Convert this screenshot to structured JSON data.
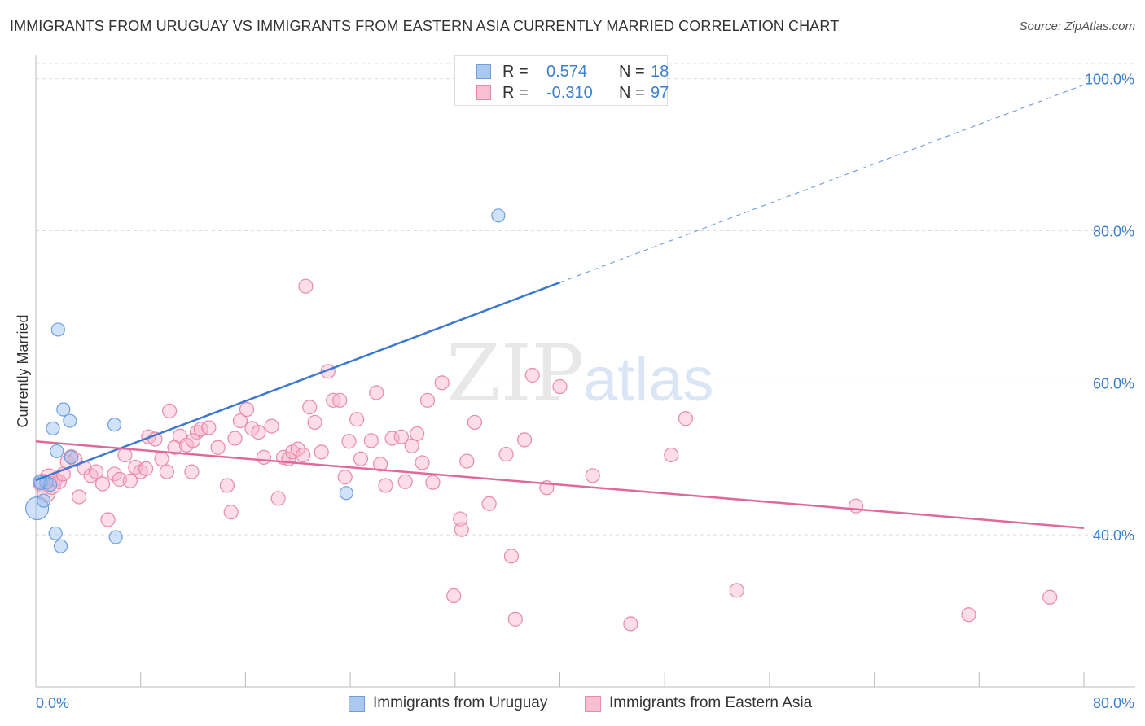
{
  "title": "IMMIGRANTS FROM URUGUAY VS IMMIGRANTS FROM EASTERN ASIA CURRENTLY MARRIED CORRELATION CHART",
  "source": "Source: ZipAtlas.com",
  "watermark": {
    "zip": "ZIP",
    "atlas": "atlas"
  },
  "legend_top": [
    {
      "r_label": "R =",
      "r_value": "0.574",
      "n_label": "N =",
      "n_value": "18",
      "color": "#aac8f0",
      "border": "#6e9fdc"
    },
    {
      "r_label": "R =",
      "r_value": "-0.310",
      "n_label": "N =",
      "n_value": "97",
      "color": "#f8bfd2",
      "border": "#e78aab"
    }
  ],
  "legend_bottom": [
    {
      "label": "Immigrants from Uruguay",
      "color": "#aac8f0",
      "border": "#6e9fdc"
    },
    {
      "label": "Immigrants from Eastern Asia",
      "color": "#f8bfd2",
      "border": "#e78aab"
    }
  ],
  "chart_data": {
    "type": "scatter",
    "ylabel": "Currently Married",
    "xlim": [
      0,
      80
    ],
    "ylim": [
      20,
      102
    ],
    "x_tick_labels": [
      "0.0%",
      "80.0%"
    ],
    "y_ticks": [
      {
        "value": 40,
        "label": "40.0%"
      },
      {
        "value": 60,
        "label": "60.0%"
      },
      {
        "value": 80,
        "label": "80.0%"
      },
      {
        "value": 100,
        "label": "100.0%"
      }
    ],
    "colors": {
      "blue": "#3b78d2",
      "pink": "#e0699a",
      "blue_fill": "rgba(150,190,240,0.45)",
      "pink_fill": "rgba(248,180,205,0.45)",
      "blue_stroke": "#6e9fdc",
      "pink_stroke": "#e78aab"
    },
    "series": [
      {
        "name": "Immigrants from Uruguay",
        "points": [
          [
            0.1,
            43.5
          ],
          [
            0.4,
            46.8
          ],
          [
            0.6,
            44.5
          ],
          [
            0.8,
            46.9
          ],
          [
            1.1,
            46.6
          ],
          [
            1.3,
            54.0
          ],
          [
            1.5,
            40.2
          ],
          [
            1.6,
            51.0
          ],
          [
            1.7,
            67.0
          ],
          [
            1.9,
            38.5
          ],
          [
            2.1,
            56.5
          ],
          [
            2.6,
            55.0
          ],
          [
            2.7,
            50.2
          ],
          [
            6.0,
            54.5
          ],
          [
            6.1,
            39.7
          ],
          [
            23.7,
            45.5
          ],
          [
            35.3,
            82.0
          ],
          [
            0.3,
            47.0
          ]
        ],
        "trend": {
          "x0": 0,
          "y0": 47.2,
          "x1": 40,
          "y1": 73.2,
          "x_ext": 80,
          "y_ext": 99.2
        }
      },
      {
        "name": "Immigrants from Eastern Asia",
        "points": [
          [
            0.5,
            46.8
          ],
          [
            0.8,
            45.5
          ],
          [
            1.0,
            47.5
          ],
          [
            1.2,
            46.5
          ],
          [
            1.5,
            47.3
          ],
          [
            1.8,
            47.0
          ],
          [
            2.1,
            48.0
          ],
          [
            2.4,
            49.6
          ],
          [
            2.7,
            50.3
          ],
          [
            3.0,
            49.9
          ],
          [
            3.3,
            45.0
          ],
          [
            3.7,
            48.8
          ],
          [
            4.2,
            47.8
          ],
          [
            4.6,
            48.3
          ],
          [
            5.1,
            46.7
          ],
          [
            5.5,
            42.0
          ],
          [
            6.0,
            48.0
          ],
          [
            6.4,
            47.3
          ],
          [
            6.8,
            50.5
          ],
          [
            7.2,
            47.1
          ],
          [
            7.6,
            48.9
          ],
          [
            8.0,
            48.3
          ],
          [
            8.4,
            48.7
          ],
          [
            8.6,
            52.9
          ],
          [
            9.1,
            52.6
          ],
          [
            9.6,
            50.0
          ],
          [
            10.0,
            48.3
          ],
          [
            10.2,
            56.3
          ],
          [
            10.6,
            51.5
          ],
          [
            11.0,
            53.0
          ],
          [
            11.5,
            51.8
          ],
          [
            11.9,
            48.3
          ],
          [
            12.3,
            53.5
          ],
          [
            12.6,
            53.9
          ],
          [
            13.2,
            54.1
          ],
          [
            13.9,
            51.5
          ],
          [
            14.6,
            46.5
          ],
          [
            14.9,
            43.0
          ],
          [
            15.2,
            52.7
          ],
          [
            15.6,
            55.0
          ],
          [
            16.1,
            56.5
          ],
          [
            16.5,
            54.0
          ],
          [
            17.0,
            53.5
          ],
          [
            17.4,
            50.2
          ],
          [
            18.0,
            54.3
          ],
          [
            18.5,
            44.8
          ],
          [
            18.9,
            50.2
          ],
          [
            19.3,
            50.0
          ],
          [
            19.6,
            50.9
          ],
          [
            20.0,
            51.3
          ],
          [
            20.4,
            50.5
          ],
          [
            20.9,
            56.8
          ],
          [
            21.3,
            54.8
          ],
          [
            21.8,
            50.9
          ],
          [
            22.3,
            61.5
          ],
          [
            22.7,
            57.7
          ],
          [
            23.2,
            57.7
          ],
          [
            23.6,
            47.6
          ],
          [
            23.9,
            52.3
          ],
          [
            24.5,
            55.2
          ],
          [
            24.8,
            50.0
          ],
          [
            25.6,
            52.4
          ],
          [
            26.0,
            58.7
          ],
          [
            26.3,
            49.3
          ],
          [
            26.7,
            46.5
          ],
          [
            27.2,
            52.7
          ],
          [
            27.9,
            52.9
          ],
          [
            28.2,
            47.0
          ],
          [
            28.7,
            51.7
          ],
          [
            29.1,
            53.3
          ],
          [
            29.5,
            49.5
          ],
          [
            29.9,
            57.7
          ],
          [
            30.3,
            46.9
          ],
          [
            31.0,
            60.0
          ],
          [
            31.9,
            32.0
          ],
          [
            32.4,
            42.1
          ],
          [
            32.5,
            40.7
          ],
          [
            32.9,
            49.7
          ],
          [
            33.5,
            54.8
          ],
          [
            34.6,
            44.1
          ],
          [
            36.3,
            37.2
          ],
          [
            36.6,
            28.9
          ],
          [
            37.3,
            52.5
          ],
          [
            37.9,
            61.0
          ],
          [
            39.0,
            46.2
          ],
          [
            40.0,
            59.5
          ],
          [
            42.5,
            47.8
          ],
          [
            45.4,
            28.3
          ],
          [
            48.5,
            50.5
          ],
          [
            49.6,
            55.3
          ],
          [
            53.5,
            32.7
          ],
          [
            62.6,
            43.8
          ],
          [
            71.2,
            29.5
          ],
          [
            77.4,
            31.8
          ],
          [
            20.6,
            72.7
          ],
          [
            12.0,
            52.4
          ],
          [
            35.9,
            50.6
          ]
        ],
        "trend": {
          "x0": 0,
          "y0": 52.3,
          "x1": 80,
          "y1": 40.9
        }
      }
    ]
  }
}
